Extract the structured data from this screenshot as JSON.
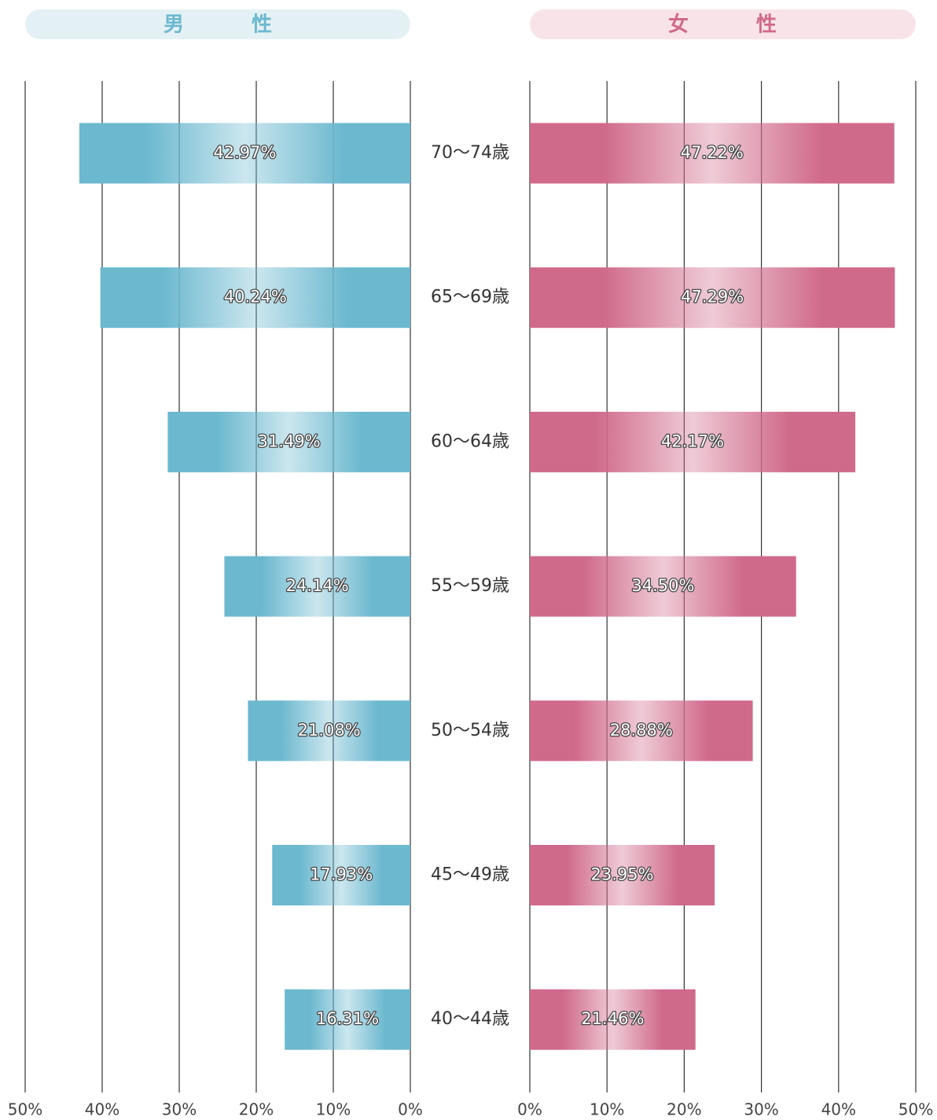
{
  "chart_data": {
    "type": "butterfly",
    "categories": [
      "70～74歳",
      "65～69歳",
      "60～64歳",
      "55～59歳",
      "50～54歳",
      "45～49歳",
      "40～44歳"
    ],
    "series": [
      {
        "name": "男　性",
        "color": "#6bb8cf",
        "values": [
          42.97,
          40.24,
          31.49,
          24.14,
          21.08,
          17.93,
          16.31
        ],
        "value_labels": [
          "42.97%",
          "40.24%",
          "31.49%",
          "24.14%",
          "21.08%",
          "17.93%",
          "16.31%"
        ]
      },
      {
        "name": "女　性",
        "color": "#d06a8a",
        "values": [
          47.22,
          47.29,
          42.17,
          34.5,
          28.88,
          23.95,
          21.46
        ],
        "value_labels": [
          "47.22%",
          "47.29%",
          "42.17%",
          "34.50%",
          "28.88%",
          "23.95%",
          "21.46%"
        ]
      }
    ],
    "xlim": [
      0,
      50
    ],
    "xticks": [
      {
        "value": 0,
        "label": "0%"
      },
      {
        "value": 10,
        "label": "10%"
      },
      {
        "value": 20,
        "label": "20%"
      },
      {
        "value": 30,
        "label": "30%"
      },
      {
        "value": 40,
        "label": "40%"
      },
      {
        "value": 50,
        "label": "50%"
      }
    ],
    "grid": true
  }
}
